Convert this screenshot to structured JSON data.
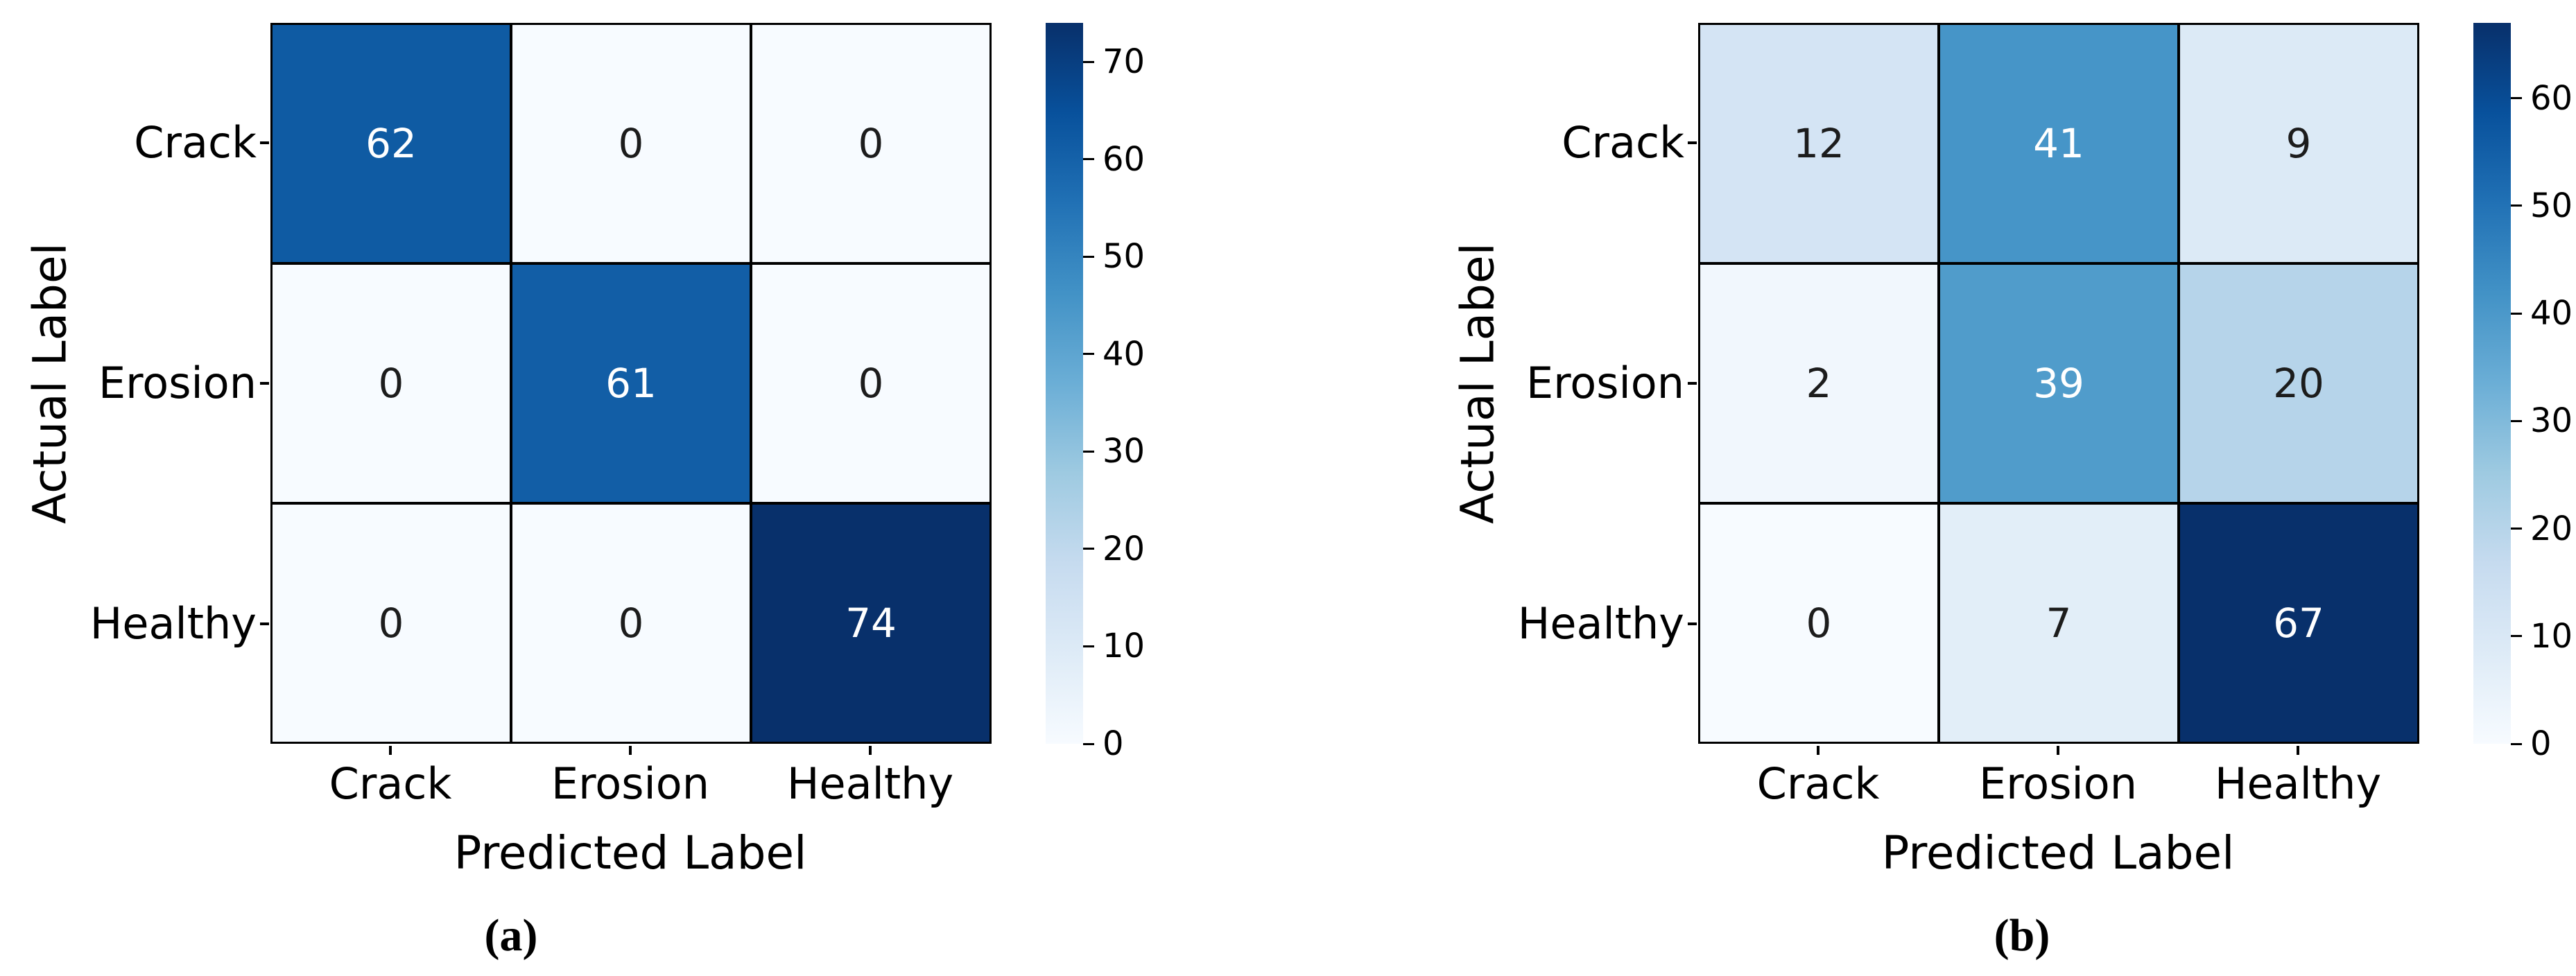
{
  "figure": {
    "background": "#ffffff"
  },
  "colormap": {
    "name": "Blues",
    "anchors": [
      "#f7fbff",
      "#deebf7",
      "#c6dbef",
      "#9ecae1",
      "#6baed6",
      "#4292c6",
      "#2171b5",
      "#08519c",
      "#08306b"
    ],
    "white_text_threshold": 0.5,
    "dark_text_color": "#1c1c1c",
    "white_text_color": "#ffffff",
    "grid_line_color": "#000000"
  },
  "chart_data": [
    {
      "type": "heatmap",
      "caption": "(a)",
      "xlabel": "Predicted Label",
      "ylabel": "Actual Label",
      "x_categories": [
        "Crack",
        "Erosion",
        "Healthy"
      ],
      "y_categories": [
        "Crack",
        "Erosion",
        "Healthy"
      ],
      "matrix": [
        [
          62,
          0,
          0
        ],
        [
          0,
          61,
          0
        ],
        [
          0,
          0,
          74
        ]
      ],
      "vmin": 0,
      "vmax": 74,
      "colorbar_ticks": [
        0,
        10,
        20,
        30,
        40,
        50,
        60,
        70
      ],
      "colorbar_position": "right",
      "grid": true
    },
    {
      "type": "heatmap",
      "caption": "(b)",
      "xlabel": "Predicted Label",
      "ylabel": "Actual Label",
      "x_categories": [
        "Crack",
        "Erosion",
        "Healthy"
      ],
      "y_categories": [
        "Crack",
        "Erosion",
        "Healthy"
      ],
      "matrix": [
        [
          12,
          41,
          9
        ],
        [
          2,
          39,
          20
        ],
        [
          0,
          7,
          67
        ]
      ],
      "vmin": 0,
      "vmax": 67,
      "colorbar_ticks": [
        0,
        10,
        20,
        30,
        40,
        50,
        60
      ],
      "colorbar_position": "right",
      "grid": true
    }
  ]
}
